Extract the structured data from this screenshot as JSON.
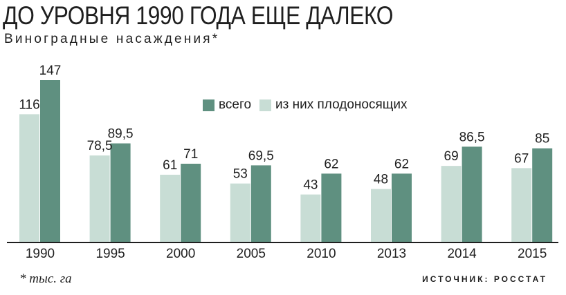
{
  "title": "ДО УРОВНЯ 1990 ГОДА ЕЩЕ ДАЛЕКО",
  "subtitle": "Виноградные насаждения*",
  "footnote": "* тыс. га",
  "source": "ИСТОЧНИК: РОССТАТ",
  "colors": {
    "total": "#5f9080",
    "bearing": "#c8ddd5",
    "axis": "#1f1f1f"
  },
  "chart_data": {
    "type": "bar",
    "title": "ДО УРОВНЯ 1990 ГОДА ЕЩЕ ДАЛЕКО",
    "subtitle": "Виноградные насаждения*",
    "categories": [
      "1990",
      "1995",
      "2000",
      "2005",
      "2010",
      "2013",
      "2014",
      "2015"
    ],
    "series": [
      {
        "name": "из них плодоносящих",
        "values": [
          116,
          78.5,
          61,
          53,
          43,
          48,
          69,
          67
        ],
        "labels": [
          "116",
          "78,5",
          "61",
          "53",
          "43",
          "48",
          "69",
          "67"
        ]
      },
      {
        "name": "всего",
        "values": [
          147,
          89.5,
          71,
          69.5,
          62,
          62,
          86.5,
          85
        ],
        "labels": [
          "147",
          "89,5",
          "71",
          "69,5",
          "62",
          "62",
          "86,5",
          "85"
        ]
      }
    ],
    "legend": [
      "всего",
      "из них плодоносящих"
    ],
    "ylim": [
      0,
      147
    ],
    "xlabel": "",
    "ylabel": "",
    "grid": false,
    "legend_position": "top-center"
  }
}
